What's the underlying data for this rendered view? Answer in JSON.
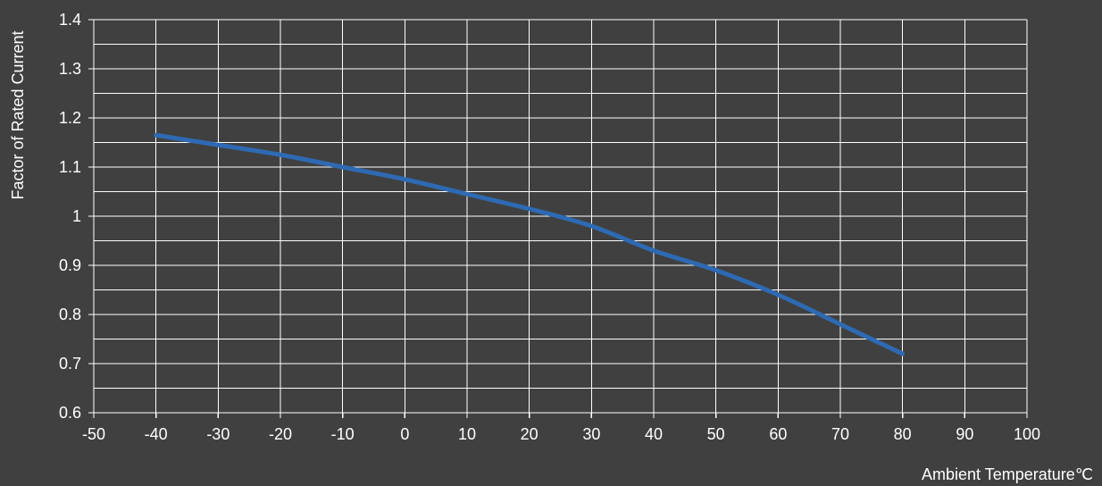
{
  "chart_data": {
    "type": "line",
    "title": "",
    "xlabel": "Ambient Temperature℃",
    "ylabel": "Factor of Rated Current",
    "xlim": [
      -50,
      100
    ],
    "ylim": [
      0.6,
      1.4
    ],
    "x_ticks": [
      "-50",
      "-40",
      "-30",
      "-20",
      "-10",
      "0",
      "10",
      "20",
      "30",
      "40",
      "50",
      "60",
      "70",
      "80",
      "90",
      "100"
    ],
    "y_ticks": [
      "0.6",
      "0.7",
      "0.8",
      "0.9",
      "1",
      "1.1",
      "1.2",
      "1.3",
      "1.4"
    ],
    "grid": true,
    "minor_y_step": 0.05,
    "x_step": 10,
    "series": [
      {
        "color": "#2e6ab3",
        "x": [
          -40,
          -30,
          -20,
          -10,
          0,
          10,
          20,
          30,
          40,
          50,
          60,
          70,
          80
        ],
        "y": [
          1.165,
          1.145,
          1.125,
          1.1,
          1.075,
          1.045,
          1.015,
          0.98,
          0.93,
          0.89,
          0.84,
          0.78,
          0.72
        ]
      }
    ]
  }
}
